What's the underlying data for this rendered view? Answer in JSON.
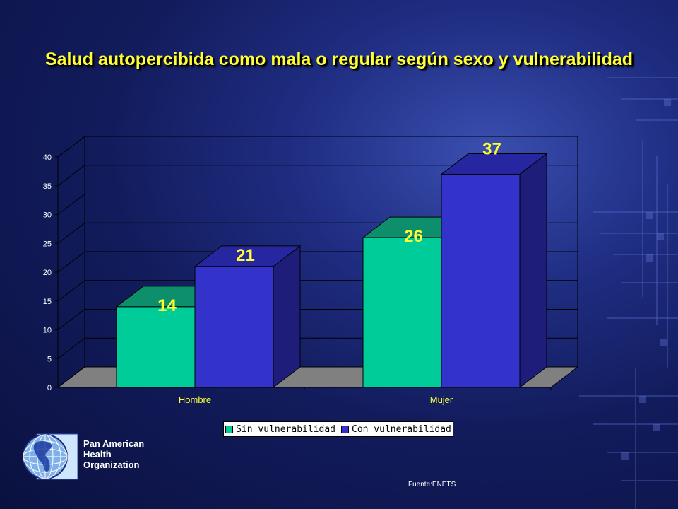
{
  "slide": {
    "title": "Salud autopercibida como mala o regular según sexo y vulnerabilidad",
    "source": "Fuente:ENETS"
  },
  "org": {
    "line1": "Pan American",
    "line2": "Health",
    "line3": "Organization",
    "logo_icon": "globe-americas-icon"
  },
  "colors": {
    "sin": "#00cc99",
    "con": "#3333cc",
    "data_label": "#ffff33",
    "axis_text": "#ffffff",
    "category_text": "#ffff33"
  },
  "chart_data": {
    "type": "bar",
    "categories": [
      "Hombre",
      "Mujer"
    ],
    "series": [
      {
        "name": "Sin vulnerabilidad",
        "values": [
          14,
          26
        ]
      },
      {
        "name": "Con vulnerabilidad",
        "values": [
          21,
          37
        ]
      }
    ],
    "ylim": [
      0,
      40
    ],
    "yticks": [
      0,
      5,
      10,
      15,
      20,
      25,
      30,
      35,
      40
    ],
    "data_labels": [
      "14",
      "21",
      "26",
      "37"
    ],
    "grid": true,
    "legend_position": "bottom",
    "title": "Salud autopercibida como mala o regular según sexo y vulnerabilidad",
    "xlabel": "",
    "ylabel": ""
  }
}
